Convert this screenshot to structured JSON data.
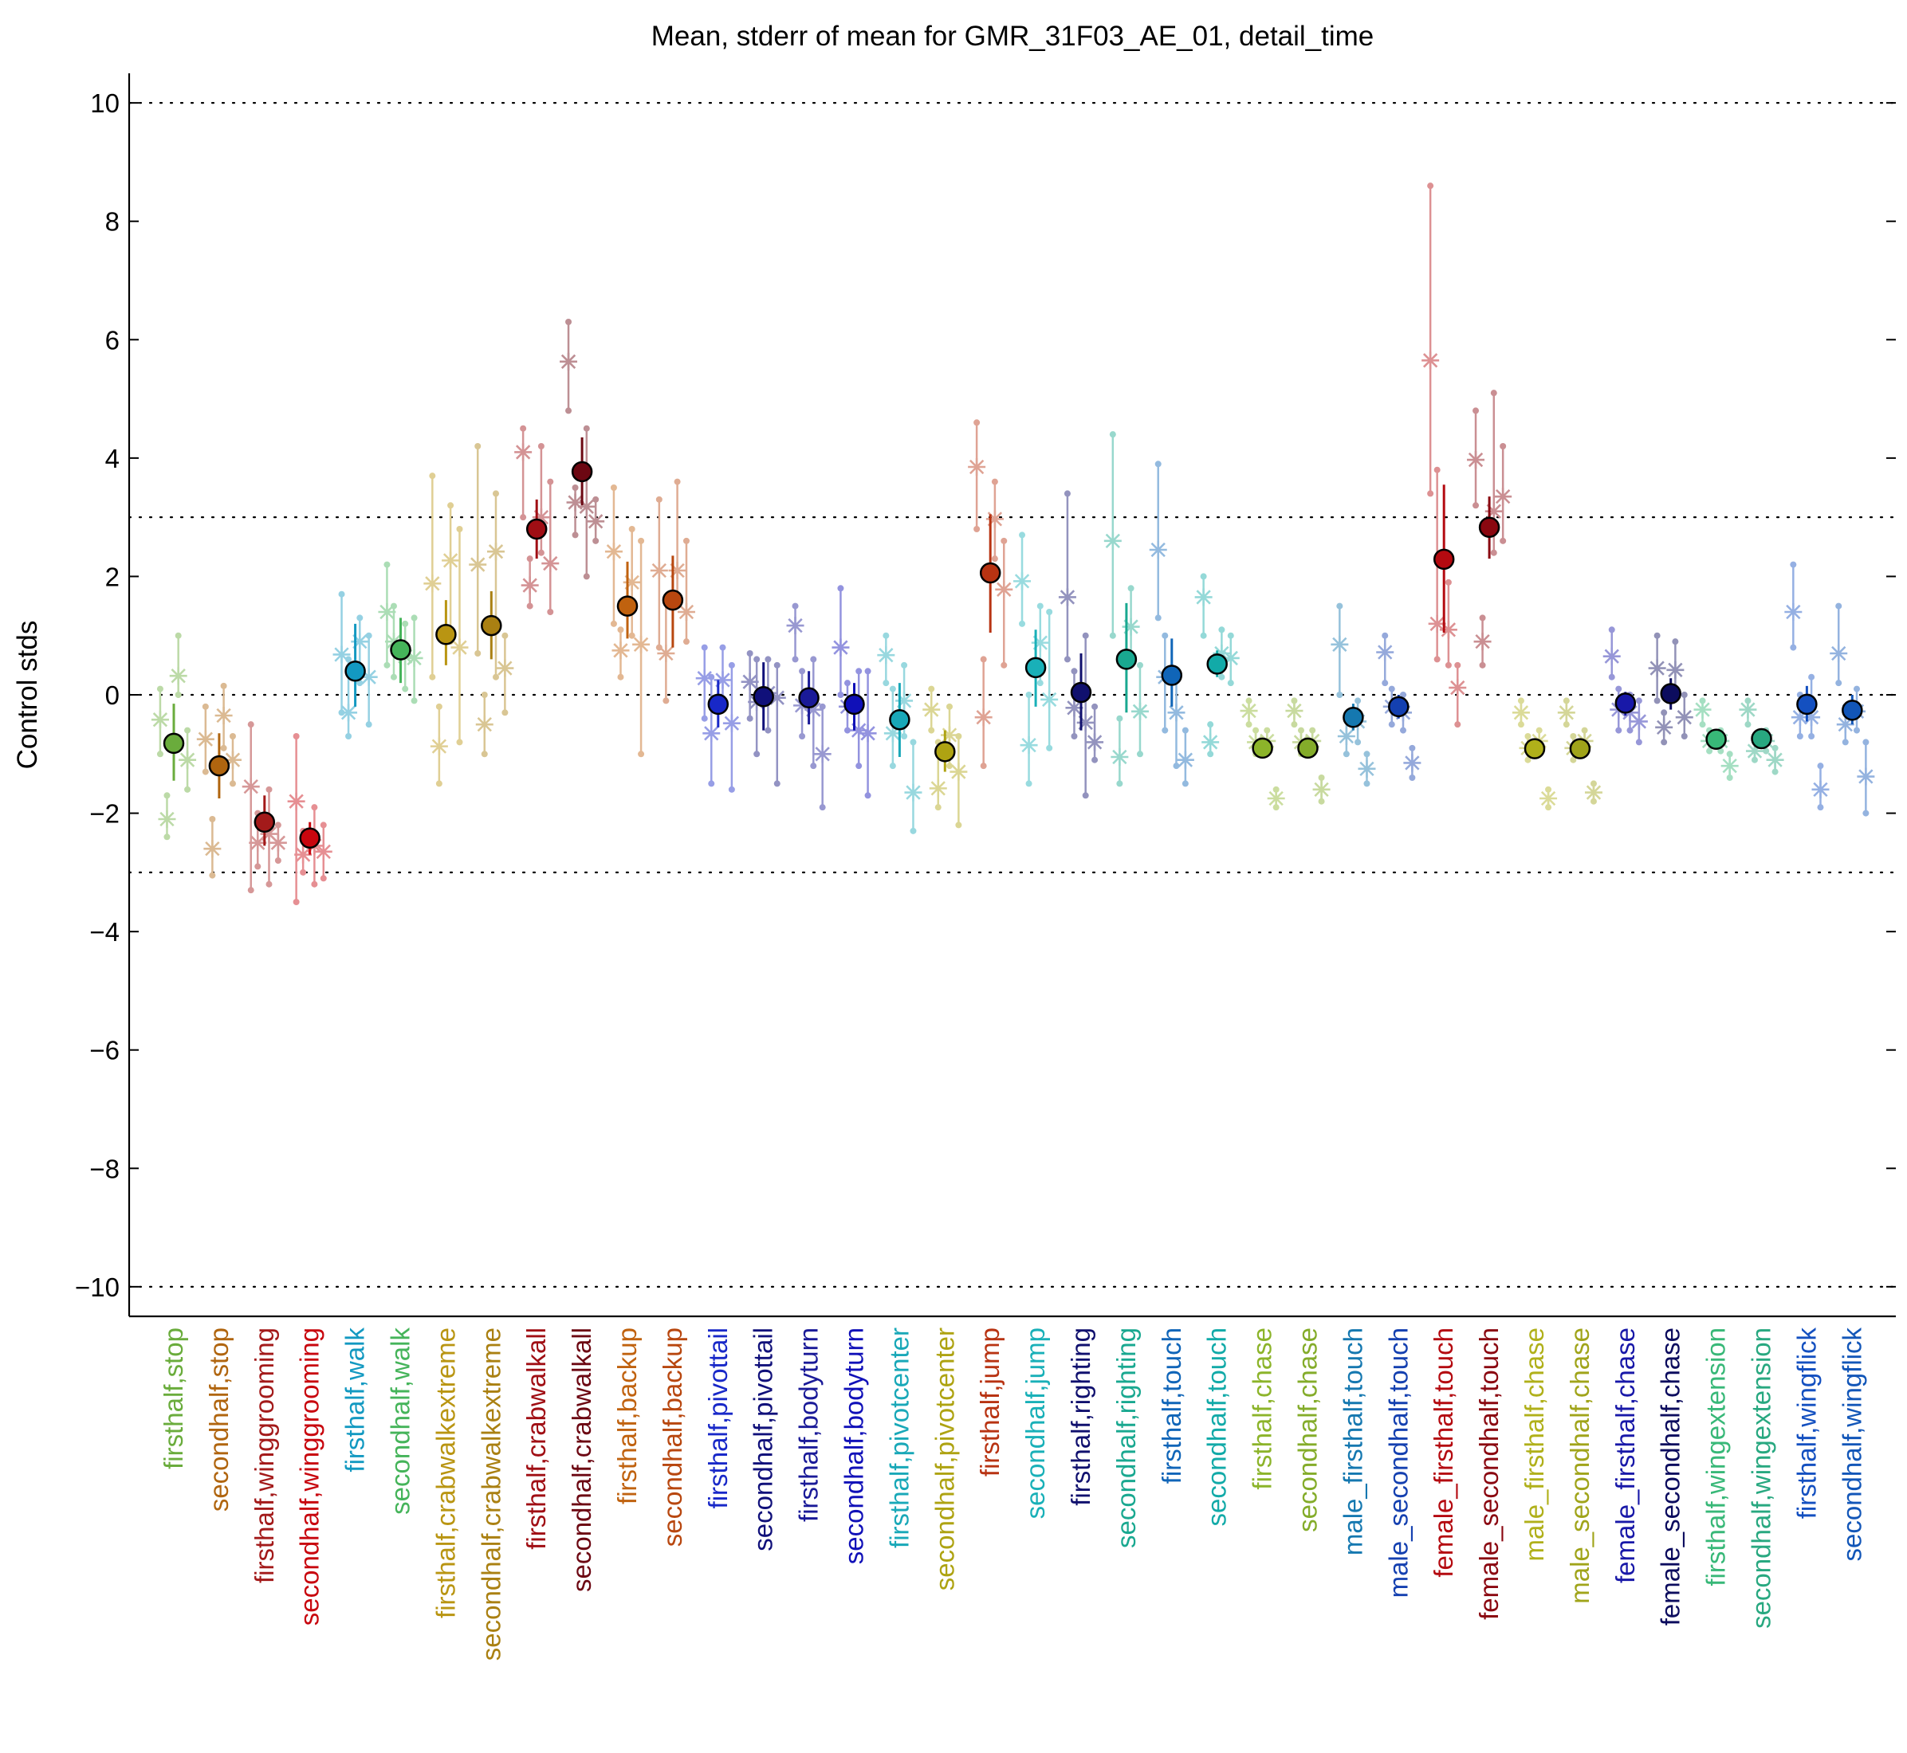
{
  "chart_data": {
    "type": "scatter",
    "title": "Mean, stderr of mean for GMR_31F03_AE_01, detail_time",
    "xlabel": "",
    "ylabel": "Control stds",
    "ylim": [
      -10.5,
      10.5
    ],
    "yticks": [
      10,
      8,
      6,
      4,
      2,
      0,
      -2,
      -4,
      -6,
      -8,
      -10
    ],
    "ytick_labels": [
      "10",
      "8",
      "6",
      "4",
      "2",
      "0",
      "−2",
      "−4",
      "−6",
      "−8",
      "−10"
    ],
    "reference_lines": [
      10,
      3,
      0,
      -3,
      -10
    ],
    "grid": false,
    "legend": "none",
    "categories": [
      "firsthalf,stop",
      "secondhalf,stop",
      "firsthalf,winggrooming",
      "secondhalf,winggrooming",
      "firsthalf,walk",
      "secondhalf,walk",
      "firsthalf,crabwalkextreme",
      "secondhalf,crabwalkextreme",
      "firsthalf,crabwalkall",
      "secondhalf,crabwalkall",
      "firsthalf,backup",
      "secondhalf,backup",
      "firsthalf,pivottail",
      "secondhalf,pivottail",
      "firsthalf,bodyturn",
      "secondhalf,bodyturn",
      "firsthalf,pivotcenter",
      "secondhalf,pivotcenter",
      "firsthalf,jump",
      "secondhalf,jump",
      "firsthalf,righting",
      "secondhalf,righting",
      "firsthalf,touch",
      "secondhalf,touch",
      "firsthalf,chase",
      "secondhalf,chase",
      "male_firsthalf,touch",
      "male_secondhalf,touch",
      "female_firsthalf,touch",
      "female_secondhalf,touch",
      "male_firsthalf,chase",
      "male_secondhalf,chase",
      "female_firsthalf,chase",
      "female_secondhalf,chase",
      "firsthalf,wingextension",
      "secondhalf,wingextension",
      "firsthalf,wingflick",
      "secondhalf,wingflick"
    ],
    "colors": [
      "#6aac3c",
      "#b0650f",
      "#a31a1a",
      "#c8060e",
      "#1399c1",
      "#45b45a",
      "#b99512",
      "#aa8012",
      "#a00e14",
      "#6c0712",
      "#c0620f",
      "#b8470f",
      "#1828c8",
      "#10107a",
      "#1a1a98",
      "#1010b8",
      "#19a8b8",
      "#aea312",
      "#b83312",
      "#19b0b8",
      "#10106e",
      "#19a890",
      "#1065b8",
      "#12aaa8",
      "#8cb42a",
      "#84ac2a",
      "#1578b0",
      "#1440b0",
      "#b40a10",
      "#8a0710",
      "#b0b01a",
      "#a0a41a",
      "#1818a8",
      "#0c0c5e",
      "#38b878",
      "#28a880",
      "#1450c0",
      "#1256b8"
    ],
    "means": [
      -0.82,
      -1.2,
      -2.15,
      -2.42,
      0.4,
      0.76,
      1.02,
      1.17,
      2.8,
      3.77,
      1.5,
      1.6,
      -0.16,
      -0.03,
      -0.05,
      -0.16,
      -0.42,
      -0.96,
      2.06,
      0.46,
      0.04,
      0.6,
      0.33,
      0.52,
      -0.9,
      -0.9,
      -0.38,
      -0.2,
      2.29,
      2.83,
      -0.91,
      -0.91,
      -0.14,
      0.02,
      -0.75,
      -0.74,
      -0.16,
      -0.26
    ],
    "stderr_low": [
      -1.45,
      -1.75,
      -2.55,
      -2.7,
      -0.2,
      0.2,
      0.5,
      0.6,
      2.3,
      3.2,
      0.95,
      0.8,
      -0.55,
      -0.6,
      -0.5,
      -0.6,
      -1.05,
      -1.3,
      1.05,
      -0.2,
      -0.6,
      -0.3,
      -0.2,
      0.3,
      -1.05,
      -1.05,
      -0.6,
      -0.4,
      1.05,
      2.3,
      -1.05,
      -1.05,
      -0.35,
      -0.25,
      -0.9,
      -0.9,
      -0.45,
      -0.5
    ],
    "stderr_high": [
      -0.15,
      -0.65,
      -1.7,
      -2.15,
      1.2,
      1.3,
      1.6,
      1.75,
      3.3,
      4.35,
      2.25,
      2.35,
      0.25,
      0.55,
      0.4,
      0.2,
      0.2,
      -0.6,
      3.05,
      1.1,
      0.7,
      1.55,
      0.95,
      0.75,
      -0.75,
      -0.75,
      -0.15,
      0.0,
      3.55,
      3.35,
      -0.75,
      -0.75,
      0.05,
      0.28,
      -0.6,
      -0.6,
      0.15,
      0.0
    ],
    "stars": [
      [
        -0.42,
        0.32,
        -1.1,
        -2.1
      ],
      [
        -0.75,
        -0.35,
        -1.1,
        -2.6
      ],
      [
        -1.55,
        -2.35,
        -2.5,
        -2.5
      ],
      [
        -1.8,
        -2.55,
        -2.65,
        -2.7
      ],
      [
        0.68,
        0.9,
        0.3,
        -0.3
      ],
      [
        1.4,
        0.65,
        0.62,
        0.9
      ],
      [
        1.88,
        2.27,
        0.8,
        -0.87
      ],
      [
        2.2,
        2.42,
        0.45,
        -0.5
      ],
      [
        4.1,
        3.0,
        2.22,
        1.85
      ],
      [
        5.63,
        3.18,
        2.93,
        3.25
      ],
      [
        2.42,
        1.9,
        0.85,
        0.75
      ],
      [
        2.1,
        2.1,
        1.4,
        0.7
      ],
      [
        0.28,
        0.25,
        -0.48,
        -0.65
      ],
      [
        0.22,
        0.03,
        -0.05,
        -0.12
      ],
      [
        1.17,
        -0.25,
        -1.0,
        -0.18
      ],
      [
        0.8,
        -0.6,
        -0.65,
        -0.2
      ],
      [
        0.67,
        -0.1,
        -1.65,
        -0.65
      ],
      [
        -0.25,
        -0.68,
        -1.3,
        -1.58
      ],
      [
        3.85,
        2.97,
        1.78,
        -0.38
      ],
      [
        1.92,
        0.88,
        -0.08,
        -0.85
      ],
      [
        1.65,
        -0.47,
        -0.8,
        -0.22
      ],
      [
        2.6,
        1.15,
        -0.28,
        -1.05
      ],
      [
        2.45,
        -0.3,
        -1.1,
        0.3
      ],
      [
        1.65,
        0.7,
        0.62,
        -0.8
      ],
      [
        -0.27,
        -0.78,
        -1.75,
        -0.8
      ],
      [
        -0.27,
        -0.78,
        -1.6,
        -0.8
      ],
      [
        0.85,
        -0.45,
        -1.25,
        -0.7
      ],
      [
        0.72,
        -0.3,
        -1.15,
        -0.2
      ],
      [
        5.65,
        1.1,
        0.12,
        1.2
      ],
      [
        3.97,
        3.1,
        3.35,
        0.9
      ],
      [
        -0.3,
        -0.78,
        -1.75,
        -0.9
      ],
      [
        -0.3,
        -0.78,
        -1.65,
        -0.9
      ],
      [
        0.65,
        -0.3,
        -0.45,
        -0.25
      ],
      [
        0.45,
        0.42,
        -0.38,
        -0.55
      ],
      [
        -0.25,
        -0.78,
        -1.2,
        -0.78
      ],
      [
        -0.25,
        -0.78,
        -1.1,
        -0.95
      ],
      [
        1.4,
        -0.38,
        -1.6,
        -0.38
      ],
      [
        0.7,
        -0.28,
        -1.38,
        -0.5
      ]
    ],
    "star_ranges": [
      [
        [
          -1.0,
          0.1
        ],
        [
          0.0,
          1.0
        ],
        [
          -1.6,
          -0.6
        ],
        [
          -2.4,
          -1.7
        ]
      ],
      [
        [
          -1.3,
          -0.2
        ],
        [
          -0.9,
          0.15
        ],
        [
          -1.5,
          -0.7
        ],
        [
          -3.05,
          -2.1
        ]
      ],
      [
        [
          -3.3,
          -0.5
        ],
        [
          -3.2,
          -1.6
        ],
        [
          -2.8,
          -2.2
        ],
        [
          -2.9,
          -2.0
        ]
      ],
      [
        [
          -3.5,
          -0.7
        ],
        [
          -3.2,
          -1.9
        ],
        [
          -3.1,
          -2.2
        ],
        [
          -3.0,
          -2.3
        ]
      ],
      [
        [
          -0.3,
          1.7
        ],
        [
          0.2,
          1.3
        ],
        [
          -0.5,
          1.0
        ],
        [
          -0.7,
          0.6
        ]
      ],
      [
        [
          0.5,
          2.2
        ],
        [
          0.1,
          1.2
        ],
        [
          -0.1,
          1.3
        ],
        [
          0.3,
          1.5
        ]
      ],
      [
        [
          0.3,
          3.7
        ],
        [
          0.9,
          3.2
        ],
        [
          -0.8,
          2.8
        ],
        [
          -1.5,
          -0.2
        ]
      ],
      [
        [
          0.7,
          4.2
        ],
        [
          0.3,
          3.4
        ],
        [
          -0.3,
          1.0
        ],
        [
          -1.0,
          0.0
        ]
      ],
      [
        [
          3.0,
          4.5
        ],
        [
          2.4,
          4.2
        ],
        [
          1.4,
          3.6
        ],
        [
          1.5,
          2.3
        ]
      ],
      [
        [
          4.8,
          6.3
        ],
        [
          2.0,
          4.5
        ],
        [
          2.6,
          3.3
        ],
        [
          2.7,
          3.5
        ]
      ],
      [
        [
          1.2,
          3.5
        ],
        [
          1.0,
          2.8
        ],
        [
          -1.0,
          2.6
        ],
        [
          0.3,
          1.1
        ]
      ],
      [
        [
          0.8,
          3.3
        ],
        [
          1.5,
          3.6
        ],
        [
          0.9,
          2.6
        ],
        [
          -0.1,
          1.6
        ]
      ],
      [
        [
          -0.4,
          0.8
        ],
        [
          -0.1,
          0.8
        ],
        [
          -1.6,
          0.5
        ],
        [
          -1.5,
          0.3
        ]
      ],
      [
        [
          -0.4,
          0.7
        ],
        [
          -0.6,
          0.6
        ],
        [
          -1.5,
          0.5
        ],
        [
          -1.0,
          0.6
        ]
      ],
      [
        [
          0.6,
          1.5
        ],
        [
          -1.2,
          0.6
        ],
        [
          -1.9,
          -0.2
        ],
        [
          -0.7,
          0.4
        ]
      ],
      [
        [
          0.0,
          1.8
        ],
        [
          -1.2,
          0.4
        ],
        [
          -1.7,
          0.4
        ],
        [
          -0.6,
          0.2
        ]
      ],
      [
        [
          0.2,
          1.0
        ],
        [
          -0.7,
          0.5
        ],
        [
          -2.3,
          -0.8
        ],
        [
          -1.2,
          0.1
        ]
      ],
      [
        [
          -0.6,
          0.1
        ],
        [
          -1.2,
          -0.2
        ],
        [
          -2.2,
          -0.7
        ],
        [
          -1.9,
          -0.8
        ]
      ],
      [
        [
          2.8,
          4.6
        ],
        [
          2.3,
          3.6
        ],
        [
          0.5,
          2.6
        ],
        [
          -1.2,
          0.6
        ]
      ],
      [
        [
          1.2,
          2.7
        ],
        [
          0.2,
          1.5
        ],
        [
          -0.9,
          1.4
        ],
        [
          -1.5,
          0.0
        ]
      ],
      [
        [
          0.6,
          3.4
        ],
        [
          -1.7,
          1.0
        ],
        [
          -1.1,
          -0.2
        ],
        [
          -0.7,
          0.4
        ]
      ],
      [
        [
          1.0,
          4.4
        ],
        [
          0.5,
          1.8
        ],
        [
          -1.0,
          0.5
        ],
        [
          -1.5,
          -0.4
        ]
      ],
      [
        [
          1.3,
          3.9
        ],
        [
          -1.2,
          0.4
        ],
        [
          -1.5,
          -0.6
        ],
        [
          -0.6,
          1.0
        ]
      ],
      [
        [
          1.0,
          2.0
        ],
        [
          0.3,
          1.1
        ],
        [
          0.2,
          1.0
        ],
        [
          -1.0,
          -0.5
        ]
      ],
      [
        [
          -0.5,
          -0.1
        ],
        [
          -0.95,
          -0.6
        ],
        [
          -1.9,
          -1.6
        ],
        [
          -1.0,
          -0.6
        ]
      ],
      [
        [
          -0.5,
          -0.1
        ],
        [
          -0.95,
          -0.6
        ],
        [
          -1.8,
          -1.4
        ],
        [
          -1.0,
          -0.6
        ]
      ],
      [
        [
          0.0,
          1.5
        ],
        [
          -0.8,
          -0.1
        ],
        [
          -1.5,
          -1.0
        ],
        [
          -1.0,
          -0.4
        ]
      ],
      [
        [
          0.2,
          1.0
        ],
        [
          -0.6,
          0.0
        ],
        [
          -1.4,
          -0.9
        ],
        [
          -0.5,
          0.1
        ]
      ],
      [
        [
          3.4,
          8.6
        ],
        [
          0.5,
          1.9
        ],
        [
          -0.5,
          0.5
        ],
        [
          0.6,
          3.8
        ]
      ],
      [
        [
          3.2,
          4.8
        ],
        [
          2.4,
          5.1
        ],
        [
          2.6,
          4.2
        ],
        [
          0.5,
          1.3
        ]
      ],
      [
        [
          -0.5,
          -0.1
        ],
        [
          -0.95,
          -0.6
        ],
        [
          -1.9,
          -1.6
        ],
        [
          -1.1,
          -0.7
        ]
      ],
      [
        [
          -0.5,
          -0.1
        ],
        [
          -0.95,
          -0.6
        ],
        [
          -1.8,
          -1.5
        ],
        [
          -1.1,
          -0.7
        ]
      ],
      [
        [
          0.3,
          1.1
        ],
        [
          -0.6,
          0.0
        ],
        [
          -0.8,
          -0.1
        ],
        [
          -0.6,
          0.1
        ]
      ],
      [
        [
          -0.1,
          1.0
        ],
        [
          0.1,
          0.9
        ],
        [
          -0.7,
          0.0
        ],
        [
          -0.8,
          -0.3
        ]
      ],
      [
        [
          -0.5,
          -0.1
        ],
        [
          -0.95,
          -0.6
        ],
        [
          -1.4,
          -1.0
        ],
        [
          -0.95,
          -0.6
        ]
      ],
      [
        [
          -0.5,
          -0.1
        ],
        [
          -0.95,
          -0.6
        ],
        [
          -1.3,
          -0.9
        ],
        [
          -1.1,
          -0.8
        ]
      ],
      [
        [
          0.8,
          2.2
        ],
        [
          -0.7,
          0.3
        ],
        [
          -1.9,
          -1.2
        ],
        [
          -0.7,
          0.0
        ]
      ],
      [
        [
          0.2,
          1.5
        ],
        [
          -0.6,
          0.1
        ],
        [
          -2.0,
          -0.8
        ],
        [
          -0.8,
          -0.2
        ]
      ]
    ]
  }
}
